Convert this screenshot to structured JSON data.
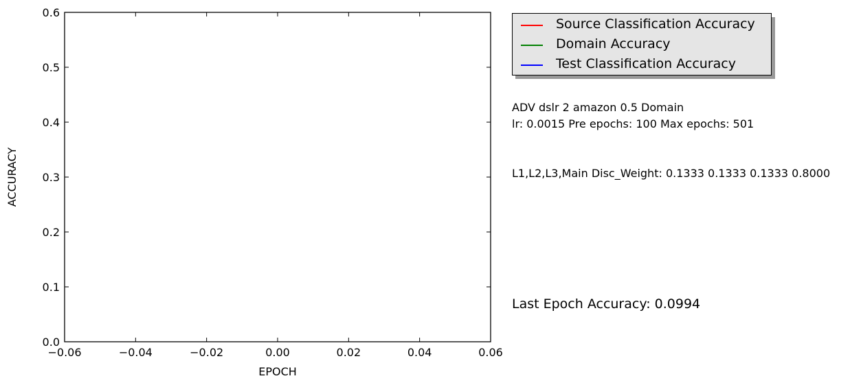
{
  "chart_data": {
    "type": "line",
    "title": "",
    "xlabel": "EPOCH",
    "ylabel": "ACCURACY",
    "xlim": [
      -0.06,
      0.06
    ],
    "ylim": [
      0.0,
      0.6
    ],
    "x_ticks": [
      "−0.06",
      "−0.04",
      "−0.02",
      "0.00",
      "0.02",
      "0.04",
      "0.06"
    ],
    "y_ticks": [
      "0.0",
      "0.1",
      "0.2",
      "0.3",
      "0.4",
      "0.5",
      "0.6"
    ],
    "grid": false,
    "legend_position": "outside-top-right",
    "series": [
      {
        "name": "Source Classification Accuracy",
        "color": "#ff0000",
        "x": [],
        "y": []
      },
      {
        "name": "Domain Accuracy",
        "color": "#008000",
        "x": [],
        "y": []
      },
      {
        "name": "Test Classification Accuracy",
        "color": "#0000ff",
        "x": [],
        "y": []
      }
    ],
    "annotations": [
      "ADV dslr 2 amazon 0.5 Domain",
      "lr: 0.0015 Pre epochs: 100 Max epochs: 501",
      "L1,L2,L3,Main Disc_Weight: 0.1333 0.1333 0.1333 0.8000",
      "Last Epoch Accuracy: 0.0994"
    ]
  }
}
